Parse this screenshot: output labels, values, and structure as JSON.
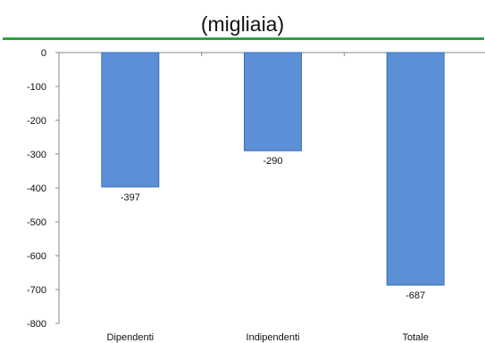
{
  "header": {
    "title_line1": "",
    "title_line2": "(migliaia)"
  },
  "colors": {
    "rule": "#2aa444",
    "bar": "#5b8fd6",
    "bar_edge": "#3f6fb3"
  },
  "chart_data": {
    "type": "bar",
    "title": "(migliaia)",
    "xlabel": "",
    "ylabel": "",
    "categories": [
      "Dipendenti",
      "Indipendenti",
      "Totale"
    ],
    "values": [
      -397,
      -290,
      -687
    ],
    "data_labels": [
      "-397",
      "-290",
      "-687"
    ],
    "ylim": [
      -800,
      0
    ],
    "yticks": [
      0,
      -100,
      -200,
      -300,
      -400,
      -500,
      -600,
      -700,
      -800
    ],
    "ytick_labels": [
      "0",
      "-100",
      "-200",
      "-300",
      "-400",
      "-500",
      "-600",
      "-700",
      "-800"
    ],
    "grid": false,
    "legend": "none"
  }
}
